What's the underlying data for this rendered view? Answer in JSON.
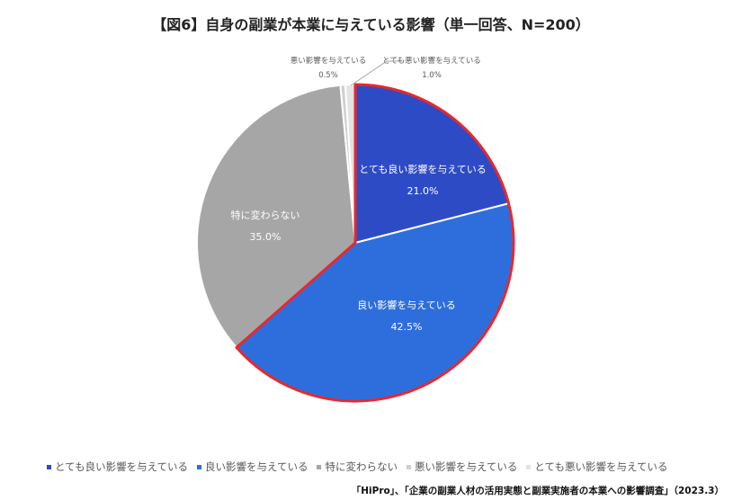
{
  "chart_data": {
    "type": "pie",
    "title": "【図6】自身の副業が本業に与えている影響（単一回答、N=200）",
    "slices": [
      {
        "label": "とても良い影響を与えている",
        "value": 21.0,
        "display": "21.0%",
        "color": "#2E4BC6",
        "label_color": "#FFFFFF"
      },
      {
        "label": "良い影響を与えている",
        "value": 42.5,
        "display": "42.5%",
        "color": "#2E6EDC",
        "label_color": "#FFFFFF"
      },
      {
        "label": "特に変わらない",
        "value": 35.0,
        "display": "35.0%",
        "color": "#A6A6A6",
        "label_color": "#FFFFFF"
      },
      {
        "label": "悪い影響を与えている",
        "value": 0.5,
        "display": "0.5%",
        "color": "#CFCFCF",
        "label_color": "#595959"
      },
      {
        "label": "とても悪い影響を与えている",
        "value": 1.0,
        "display": "1.0%",
        "color": "#E3E3E3",
        "label_color": "#595959"
      }
    ],
    "highlight_color": "#E8282B",
    "legend_position": "bottom"
  },
  "source": "「HiPro」、「企業の副業人材の活用実態と副業実施者の本業への影響調査」（2023.3）"
}
